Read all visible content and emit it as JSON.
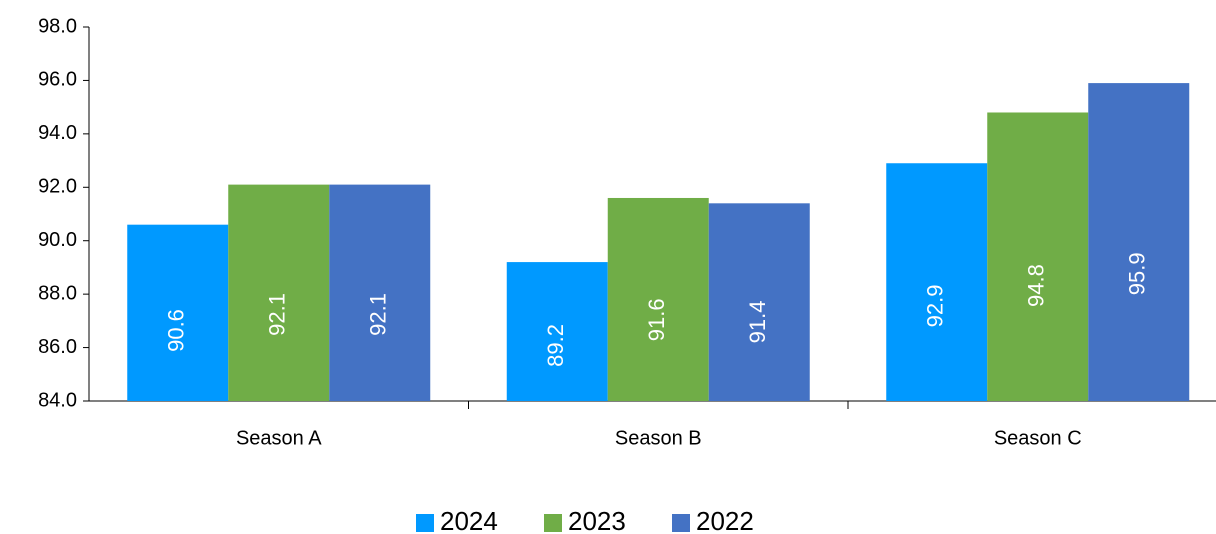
{
  "chart_data": {
    "type": "bar",
    "categories": [
      "Season A",
      "Season B",
      "Season C"
    ],
    "series": [
      {
        "name": "2024",
        "color": "#0099ff",
        "values": [
          90.6,
          89.2,
          92.9
        ]
      },
      {
        "name": "2023",
        "color": "#70ad47",
        "values": [
          92.1,
          91.6,
          94.8
        ]
      },
      {
        "name": "2022",
        "color": "#4472c4",
        "values": [
          92.1,
          91.4,
          95.9
        ]
      }
    ],
    "ylim": [
      84,
      98
    ],
    "yticks": [
      {
        "value": 84,
        "label": "84.0"
      },
      {
        "value": 86,
        "label": "86.0"
      },
      {
        "value": 88,
        "label": "88.0"
      },
      {
        "value": 90,
        "label": "90.0"
      },
      {
        "value": 92,
        "label": "92.0"
      },
      {
        "value": 94,
        "label": "94.0"
      },
      {
        "value": 96,
        "label": "96.0"
      },
      {
        "value": 98,
        "label": "98.0"
      }
    ],
    "grid": false,
    "legend": "bottom"
  }
}
